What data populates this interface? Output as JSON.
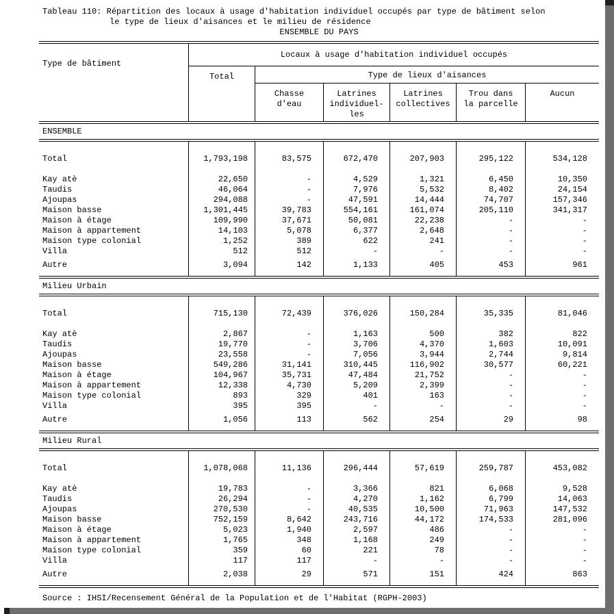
{
  "title": {
    "line1": "Tableau 110: Répartition des locaux à usage d'habitation individuel occupés par type de bâtiment selon",
    "line2": "le type de lieux d'aisances et le milieu de résidence",
    "line3": "ENSEMBLE DU PAYS"
  },
  "header": {
    "row_label": "Type de bâtiment",
    "span_label": "Locaux à usage d'habitation individuel occupés",
    "total_label": "Total",
    "group_label": "Type de lieux d'aisances",
    "columns": [
      "Chasse\nd'eau",
      "Latrines\nindividuel-\nles",
      "Latrines\ncollectives",
      "Trou dans\nla parcelle",
      "Aucun"
    ]
  },
  "sections": [
    {
      "label": "ENSEMBLE",
      "rows": [
        {
          "label": "Total",
          "values": [
            "1,793,198",
            "83,575",
            "672,470",
            "207,903",
            "295,122",
            "534,128"
          ]
        },
        {
          "label": "Kay atè",
          "values": [
            "22,650",
            "-",
            "4,529",
            "1,321",
            "6,450",
            "10,350"
          ]
        },
        {
          "label": "Taudis",
          "values": [
            "46,064",
            "-",
            "7,976",
            "5,532",
            "8,402",
            "24,154"
          ]
        },
        {
          "label": "Ajoupas",
          "values": [
            "294,088",
            "-",
            "47,591",
            "14,444",
            "74,707",
            "157,346"
          ]
        },
        {
          "label": "Maison basse",
          "values": [
            "1,301,445",
            "39,783",
            "554,161",
            "161,074",
            "205,110",
            "341,317"
          ]
        },
        {
          "label": "Maison à étage",
          "values": [
            "109,990",
            "37,671",
            "50,081",
            "22,238",
            "-",
            "-"
          ]
        },
        {
          "label": "Maison à appartement",
          "values": [
            "14,103",
            "5,078",
            "6,377",
            "2,648",
            "-",
            "-"
          ]
        },
        {
          "label": "Maison type colonial",
          "values": [
            "1,252",
            "389",
            "622",
            "241",
            "-",
            "-"
          ]
        },
        {
          "label": "Villa",
          "values": [
            "512",
            "512",
            "-",
            "-",
            "-",
            "-"
          ]
        },
        {
          "label": "Autre",
          "values": [
            "3,094",
            "142",
            "1,133",
            "405",
            "453",
            "961"
          ]
        }
      ]
    },
    {
      "label": "Milieu Urbain",
      "rows": [
        {
          "label": "Total",
          "values": [
            "715,130",
            "72,439",
            "376,026",
            "150,284",
            "35,335",
            "81,046"
          ]
        },
        {
          "label": "Kay atè",
          "values": [
            "2,867",
            "-",
            "1,163",
            "500",
            "382",
            "822"
          ]
        },
        {
          "label": "Taudis",
          "values": [
            "19,770",
            "-",
            "3,706",
            "4,370",
            "1,603",
            "10,091"
          ]
        },
        {
          "label": "Ajoupas",
          "values": [
            "23,558",
            "-",
            "7,056",
            "3,944",
            "2,744",
            "9,814"
          ]
        },
        {
          "label": "Maison basse",
          "values": [
            "549,286",
            "31,141",
            "310,445",
            "116,902",
            "30,577",
            "60,221"
          ]
        },
        {
          "label": "Maison à étage",
          "values": [
            "104,967",
            "35,731",
            "47,484",
            "21,752",
            "-",
            "-"
          ]
        },
        {
          "label": "Maison à appartement",
          "values": [
            "12,338",
            "4,730",
            "5,209",
            "2,399",
            "-",
            "-"
          ]
        },
        {
          "label": "Maison type colonial",
          "values": [
            "893",
            "329",
            "401",
            "163",
            "-",
            "-"
          ]
        },
        {
          "label": "Villa",
          "values": [
            "395",
            "395",
            "-",
            "-",
            "-",
            "-"
          ]
        },
        {
          "label": "Autre",
          "values": [
            "1,056",
            "113",
            "562",
            "254",
            "29",
            "98"
          ]
        }
      ]
    },
    {
      "label": "Milieu Rural",
      "rows": [
        {
          "label": "Total",
          "values": [
            "1,078,068",
            "11,136",
            "296,444",
            "57,619",
            "259,787",
            "453,082"
          ]
        },
        {
          "label": "Kay atè",
          "values": [
            "19,783",
            "-",
            "3,366",
            "821",
            "6,068",
            "9,528"
          ]
        },
        {
          "label": "Taudis",
          "values": [
            "26,294",
            "-",
            "4,270",
            "1,162",
            "6,799",
            "14,063"
          ]
        },
        {
          "label": "Ajoupas",
          "values": [
            "270,530",
            "-",
            "40,535",
            "10,500",
            "71,963",
            "147,532"
          ]
        },
        {
          "label": "Maison basse",
          "values": [
            "752,159",
            "8,642",
            "243,716",
            "44,172",
            "174,533",
            "281,096"
          ]
        },
        {
          "label": "Maison à étage",
          "values": [
            "5,023",
            "1,940",
            "2,597",
            "486",
            "-",
            "-"
          ]
        },
        {
          "label": "Maison à appartement",
          "values": [
            "1,765",
            "348",
            "1,168",
            "249",
            "-",
            "-"
          ]
        },
        {
          "label": "Maison type colonial",
          "values": [
            "359",
            "60",
            "221",
            "78",
            "-",
            "-"
          ]
        },
        {
          "label": "Villa",
          "values": [
            "117",
            "117",
            "-",
            "-",
            "-",
            "-"
          ]
        },
        {
          "label": "Autre",
          "values": [
            "2,038",
            "29",
            "571",
            "151",
            "424",
            "863"
          ]
        }
      ]
    }
  ],
  "source": "Source : IHSI/Recensement Général de la Population et de l'Habitat (RGPH-2003)"
}
